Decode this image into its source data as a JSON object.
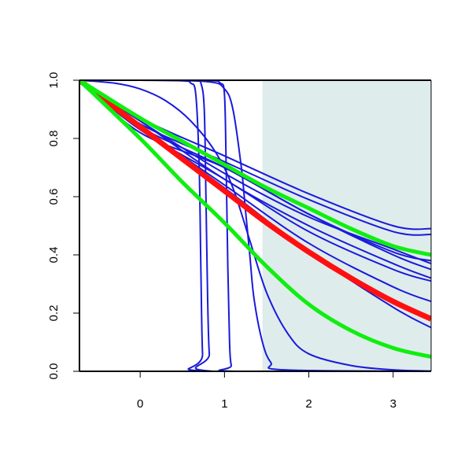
{
  "colors": {
    "background": "#ffffff",
    "shaded_region": "#dfecec",
    "blue_curves": "#1a1adb",
    "red_curve": "#ff1010",
    "green_curves": "#10ee10",
    "axis": "#000000"
  },
  "chart_data": {
    "type": "line",
    "title": "",
    "xlabel": "",
    "ylabel": "",
    "xlim": [
      -0.72,
      3.45
    ],
    "ylim": [
      0.0,
      1.0
    ],
    "x_ticks": [
      0,
      1,
      2,
      3
    ],
    "x_tick_labels": [
      "0",
      "1",
      "2",
      "3"
    ],
    "y_ticks": [
      0.0,
      0.2,
      0.4,
      0.6,
      0.8,
      1.0
    ],
    "y_tick_labels": [
      "0.0",
      "0.2",
      "0.4",
      "0.6",
      "0.8",
      "1.0"
    ],
    "grid": false,
    "legend": "none",
    "shaded_x_range": [
      1.45,
      3.45
    ],
    "series": [
      {
        "kind": "blue",
        "x": [
          -0.72,
          0.0,
          0.5,
          0.6,
          0.66,
          0.7,
          0.72,
          0.74,
          0.78,
          3.45
        ],
        "y": [
          1.0,
          1.0,
          0.998,
          0.99,
          0.95,
          0.7,
          0.35,
          0.06,
          0.0,
          0.0
        ]
      },
      {
        "kind": "blue",
        "x": [
          -0.72,
          0.0,
          0.65,
          0.72,
          0.76,
          0.78,
          0.8,
          0.82,
          0.86,
          3.45
        ],
        "y": [
          1.0,
          1.0,
          0.999,
          0.99,
          0.9,
          0.6,
          0.25,
          0.06,
          0.0,
          0.0
        ]
      },
      {
        "kind": "blue",
        "x": [
          -0.72,
          0.0,
          0.8,
          0.95,
          1.0,
          1.02,
          1.04,
          1.06,
          1.08,
          1.12,
          3.45
        ],
        "y": [
          1.0,
          1.0,
          0.999,
          0.99,
          0.95,
          0.7,
          0.35,
          0.1,
          0.02,
          0.0,
          0.0
        ]
      },
      {
        "kind": "blue",
        "x": [
          -0.72,
          0.0,
          0.8,
          1.0,
          1.1,
          1.2,
          1.25,
          1.3,
          1.35,
          1.45,
          1.55,
          1.7,
          3.45
        ],
        "y": [
          1.0,
          1.0,
          0.995,
          0.97,
          0.9,
          0.7,
          0.55,
          0.4,
          0.25,
          0.1,
          0.03,
          0.005,
          0.0
        ]
      },
      {
        "kind": "blue",
        "x": [
          -0.72,
          -0.3,
          0.0,
          0.3,
          0.6,
          0.9,
          1.1,
          1.3,
          1.5,
          1.75,
          2.0,
          2.5,
          3.0,
          3.45
        ],
        "y": [
          1.0,
          0.99,
          0.97,
          0.93,
          0.86,
          0.75,
          0.63,
          0.45,
          0.27,
          0.13,
          0.06,
          0.02,
          0.005,
          0.001
        ]
      },
      {
        "kind": "blue",
        "x": [
          -0.72,
          0.0,
          1.0,
          2.0,
          3.0,
          3.45
        ],
        "y": [
          1.0,
          0.87,
          0.74,
          0.61,
          0.5,
          0.49
        ]
      },
      {
        "kind": "blue",
        "x": [
          -0.72,
          0.0,
          1.0,
          2.0,
          3.0,
          3.45
        ],
        "y": [
          1.0,
          0.85,
          0.72,
          0.59,
          0.48,
          0.47
        ]
      },
      {
        "kind": "blue",
        "x": [
          -0.72,
          0.0,
          1.0,
          2.0,
          3.0,
          3.45
        ],
        "y": [
          1.0,
          0.82,
          0.7,
          0.54,
          0.41,
          0.38
        ]
      },
      {
        "kind": "blue",
        "x": [
          -0.72,
          0.0,
          1.0,
          2.0,
          3.0,
          3.45
        ],
        "y": [
          1.0,
          0.86,
          0.68,
          0.53,
          0.42,
          0.37
        ]
      },
      {
        "kind": "blue",
        "x": [
          -0.72,
          0.0,
          1.0,
          2.0,
          3.0,
          3.45
        ],
        "y": [
          1.0,
          0.84,
          0.7,
          0.54,
          0.4,
          0.35
        ]
      },
      {
        "kind": "blue",
        "x": [
          -0.72,
          0.0,
          1.0,
          2.0,
          3.0,
          3.45
        ],
        "y": [
          1.0,
          0.86,
          0.66,
          0.5,
          0.37,
          0.32
        ]
      },
      {
        "kind": "blue",
        "x": [
          -0.72,
          0.0,
          1.0,
          2.0,
          3.0,
          3.45
        ],
        "y": [
          1.0,
          0.83,
          0.66,
          0.48,
          0.35,
          0.31
        ]
      },
      {
        "kind": "blue",
        "x": [
          -0.72,
          0.0,
          1.0,
          2.0,
          3.0,
          3.45
        ],
        "y": [
          1.0,
          0.84,
          0.64,
          0.44,
          0.29,
          0.24
        ]
      },
      {
        "kind": "blue",
        "x": [
          -0.72,
          0.0,
          1.0,
          2.0,
          3.0,
          3.45
        ],
        "y": [
          1.0,
          0.84,
          0.63,
          0.41,
          0.22,
          0.15
        ]
      },
      {
        "kind": "red",
        "x": [
          -0.72,
          0.0,
          0.5,
          1.0,
          1.5,
          2.0,
          2.5,
          3.0,
          3.45
        ],
        "y": [
          1.0,
          0.84,
          0.73,
          0.62,
          0.51,
          0.41,
          0.32,
          0.24,
          0.18
        ]
      },
      {
        "kind": "green",
        "x": [
          -0.72,
          0.0,
          0.5,
          1.0,
          1.5,
          2.0,
          2.5,
          3.0,
          3.45
        ],
        "y": [
          1.0,
          0.87,
          0.79,
          0.71,
          0.63,
          0.56,
          0.49,
          0.43,
          0.4
        ]
      },
      {
        "kind": "green",
        "x": [
          -0.72,
          0.0,
          0.5,
          1.0,
          1.5,
          2.0,
          2.5,
          3.0,
          3.45
        ],
        "y": [
          1.0,
          0.8,
          0.65,
          0.51,
          0.36,
          0.23,
          0.14,
          0.08,
          0.05
        ]
      }
    ]
  }
}
